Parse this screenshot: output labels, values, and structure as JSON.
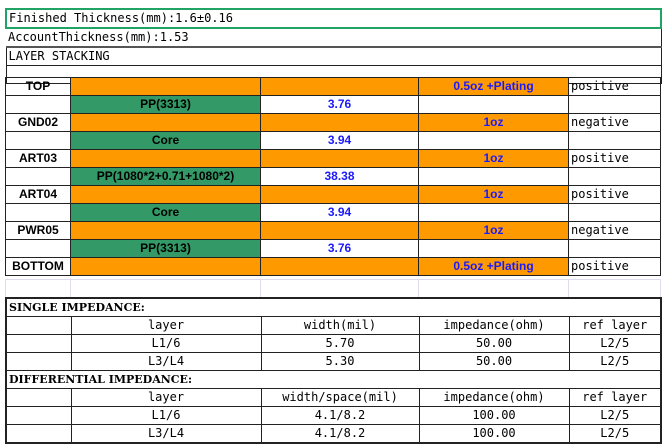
{
  "header": {
    "finished_thickness": "Finished Thickness(mm):1.6±0.16",
    "account_thickness": "AccountThickness(mm):1.53",
    "section_title": "LAYER STACKING"
  },
  "colors": {
    "copper": "#FF9900",
    "dielectric": "#339966",
    "value_text": "#1A1AFF",
    "selection": "#21A366"
  },
  "stack": [
    {
      "layer": "TOP",
      "type": "copper",
      "copper": "0.5oz +Plating",
      "polarity": "positive"
    },
    {
      "material": "PP(3313)",
      "type": "dielectric",
      "thickness": "3.76"
    },
    {
      "layer": "GND02",
      "type": "copper",
      "copper": "1oz",
      "polarity": "negative"
    },
    {
      "material": "Core",
      "type": "dielectric",
      "thickness": "3.94"
    },
    {
      "layer": "ART03",
      "type": "copper",
      "copper": "1oz",
      "polarity": "positive"
    },
    {
      "material": "PP(1080*2+0.71+1080*2)",
      "type": "dielectric",
      "thickness": "38.38"
    },
    {
      "layer": "ART04",
      "type": "copper",
      "copper": "1oz",
      "polarity": "positive"
    },
    {
      "material": "Core",
      "type": "dielectric",
      "thickness": "3.94"
    },
    {
      "layer": "PWR05",
      "type": "copper",
      "copper": "1oz",
      "polarity": "negative"
    },
    {
      "material": "PP(3313)",
      "type": "dielectric",
      "thickness": "3.76"
    },
    {
      "layer": "BOTTOM",
      "type": "copper",
      "copper": "0.5oz +Plating",
      "polarity": "positive"
    }
  ],
  "single": {
    "title": "SINGLE   IMPEDANCE:",
    "headers": [
      "layer",
      "width(mil)",
      "impedance(ohm)",
      "ref layer"
    ],
    "rows": [
      [
        "L1/6",
        "5.70",
        "50.00",
        "L2/5"
      ],
      [
        "L3/L4",
        "5.30",
        "50.00",
        "L2/5"
      ]
    ]
  },
  "differential": {
    "title": "DIFFERENTIAL  IMPEDANCE:",
    "headers": [
      "layer",
      "width/space(mil)",
      "impedance(ohm)",
      "ref layer"
    ],
    "rows": [
      [
        "L1/6",
        "4.1/8.2",
        "100.00",
        "L2/5"
      ],
      [
        "L3/L4",
        "4.1/8.2",
        "100.00",
        "L2/5"
      ]
    ]
  }
}
